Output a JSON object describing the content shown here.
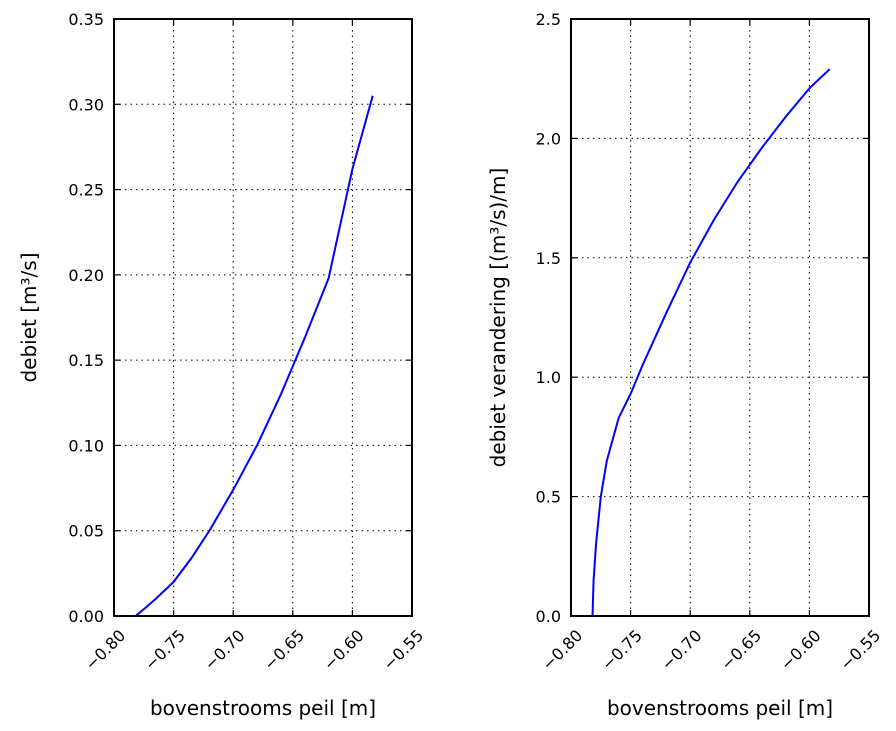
{
  "chart_data": [
    {
      "type": "line",
      "title": "",
      "xlabel": "bovenstrooms peil [m]",
      "ylabel": "debiet [m³/s]",
      "xlim": [
        -0.8,
        -0.55
      ],
      "ylim": [
        0.0,
        0.35
      ],
      "xticks": [
        "−0.80",
        "−0.75",
        "−0.70",
        "−0.65",
        "−0.60",
        "−0.55"
      ],
      "yticks": [
        "0.00",
        "0.05",
        "0.10",
        "0.15",
        "0.20",
        "0.25",
        "0.30",
        "0.35"
      ],
      "grid": true,
      "line_color": "#0000ff",
      "series": [
        {
          "x": [
            -0.782,
            -0.775,
            -0.765,
            -0.75,
            -0.735,
            -0.72,
            -0.7,
            -0.68,
            -0.66,
            -0.64,
            -0.62,
            -0.6,
            -0.583
          ],
          "y": [
            0.0,
            0.004,
            0.01,
            0.02,
            0.034,
            0.05,
            0.074,
            0.1,
            0.13,
            0.163,
            0.198,
            0.262,
            0.305
          ]
        }
      ]
    },
    {
      "type": "line",
      "title": "",
      "xlabel": "bovenstrooms peil [m]",
      "ylabel": "debiet verandering [(m³/s)/m]",
      "xlim": [
        -0.8,
        -0.55
      ],
      "ylim": [
        0.0,
        2.5
      ],
      "xticks": [
        "−0.80",
        "−0.75",
        "−0.70",
        "−0.65",
        "−0.60",
        "−0.55"
      ],
      "yticks": [
        "0.0",
        "0.5",
        "1.0",
        "1.5",
        "2.0",
        "2.5"
      ],
      "grid": true,
      "line_color": "#0000ff",
      "series": [
        {
          "x": [
            -0.782,
            -0.781,
            -0.779,
            -0.775,
            -0.77,
            -0.76,
            -0.75,
            -0.74,
            -0.72,
            -0.7,
            -0.68,
            -0.66,
            -0.64,
            -0.62,
            -0.6,
            -0.583
          ],
          "y": [
            0.0,
            0.15,
            0.3,
            0.5,
            0.65,
            0.83,
            0.93,
            1.05,
            1.27,
            1.48,
            1.66,
            1.82,
            1.96,
            2.09,
            2.21,
            2.29
          ]
        }
      ]
    }
  ]
}
